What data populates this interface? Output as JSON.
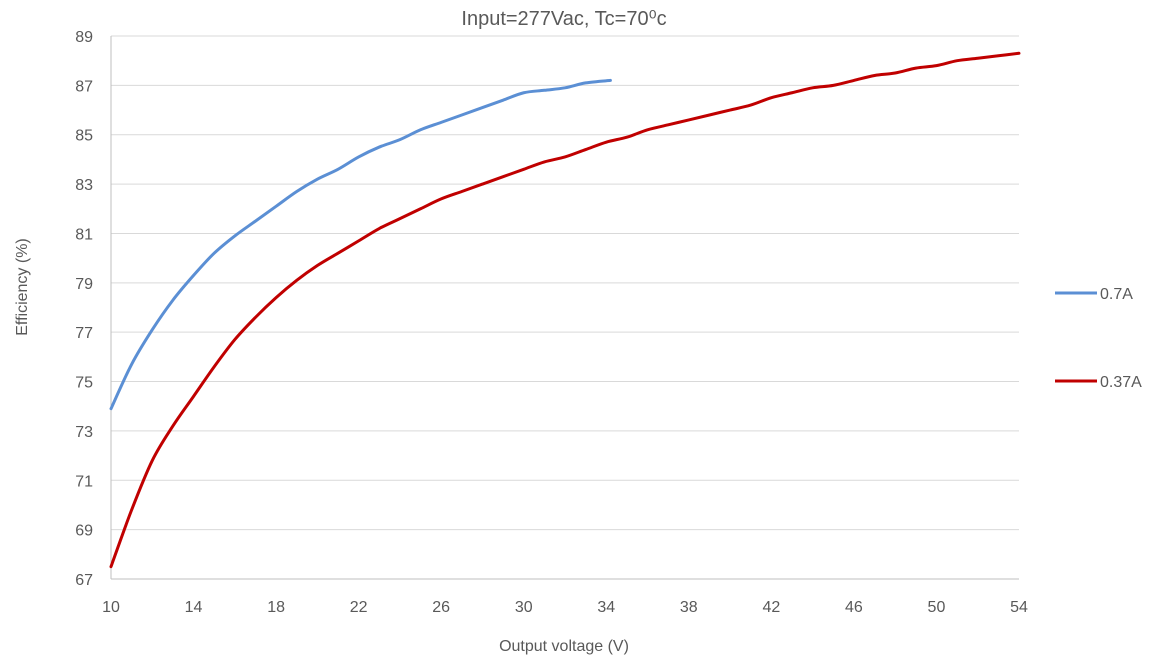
{
  "chart_data": {
    "type": "line",
    "title": "Input=277Vac, Tc=70⁰c",
    "xlabel": "Output voltage (V)",
    "ylabel": "Efficiency (%)",
    "xlim": [
      10,
      54
    ],
    "ylim": [
      67,
      89
    ],
    "x_ticks": [
      10,
      14,
      18,
      22,
      26,
      30,
      34,
      38,
      42,
      46,
      50,
      54
    ],
    "y_ticks": [
      67,
      69,
      71,
      73,
      75,
      77,
      79,
      81,
      83,
      85,
      87,
      89
    ],
    "grid": "horizontal",
    "legend_position": "right",
    "series": [
      {
        "name": "0.7A",
        "color": "#5B8FD4",
        "x": [
          10,
          11,
          12,
          13,
          14,
          15,
          16,
          17,
          18,
          19,
          20,
          21,
          22,
          23,
          24,
          25,
          26,
          27,
          28,
          29,
          30,
          31,
          32,
          33,
          34.2
        ],
        "y": [
          73.9,
          75.7,
          77.1,
          78.3,
          79.3,
          80.2,
          80.9,
          81.5,
          82.1,
          82.7,
          83.2,
          83.6,
          84.1,
          84.5,
          84.8,
          85.2,
          85.5,
          85.8,
          86.1,
          86.4,
          86.7,
          86.8,
          86.9,
          87.1,
          87.2
        ]
      },
      {
        "name": "0.37A",
        "color": "#C00000",
        "x": [
          10,
          11,
          12,
          13,
          14,
          15,
          16,
          17,
          18,
          19,
          20,
          21,
          22,
          23,
          24,
          25,
          26,
          27,
          28,
          29,
          30,
          31,
          32,
          33,
          34,
          35,
          36,
          37,
          38,
          39,
          40,
          41,
          42,
          43,
          44,
          45,
          46,
          47,
          48,
          49,
          50,
          51,
          52,
          53,
          54
        ],
        "y": [
          67.5,
          69.8,
          71.8,
          73.2,
          74.4,
          75.6,
          76.7,
          77.6,
          78.4,
          79.1,
          79.7,
          80.2,
          80.7,
          81.2,
          81.6,
          82.0,
          82.4,
          82.7,
          83.0,
          83.3,
          83.6,
          83.9,
          84.1,
          84.4,
          84.7,
          84.9,
          85.2,
          85.4,
          85.6,
          85.8,
          86.0,
          86.2,
          86.5,
          86.7,
          86.9,
          87.0,
          87.2,
          87.4,
          87.5,
          87.7,
          87.8,
          88.0,
          88.1,
          88.2,
          88.3
        ]
      }
    ]
  }
}
